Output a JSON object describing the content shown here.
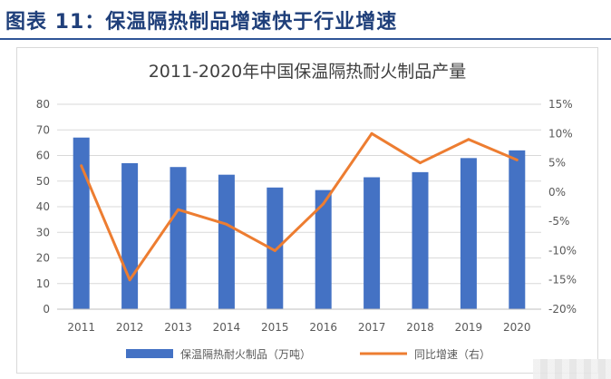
{
  "figure_title": "图表 11：保温隔热制品增速快于行业增速",
  "chart_data": {
    "type": "bar",
    "title": "2011-2020年中国保温隔热耐火制品产量",
    "categories": [
      "2011",
      "2012",
      "2013",
      "2014",
      "2015",
      "2016",
      "2017",
      "2018",
      "2019",
      "2020"
    ],
    "series": [
      {
        "name": "保温隔热耐火制品（万吨）",
        "type": "bar",
        "axis": "left",
        "color": "#4472c4",
        "values": [
          67,
          57,
          55.5,
          52.5,
          47.5,
          46.5,
          51.5,
          53.5,
          59,
          62
        ]
      },
      {
        "name": "同比增速（右）",
        "type": "line",
        "axis": "right",
        "color": "#ed7d31",
        "values": [
          4.5,
          -15,
          -3,
          -5.5,
          -10,
          -2,
          10,
          5,
          9,
          5.5
        ]
      }
    ],
    "ylim_left": [
      0,
      80
    ],
    "yticks_left": [
      "0",
      "10",
      "20",
      "30",
      "40",
      "50",
      "60",
      "70",
      "80"
    ],
    "ylim_right": [
      -20,
      15
    ],
    "yticks_right": [
      "-20%",
      "-15%",
      "-10%",
      "-5%",
      "0%",
      "5%",
      "10%",
      "15%"
    ],
    "grid": true,
    "legend": "bottom"
  }
}
